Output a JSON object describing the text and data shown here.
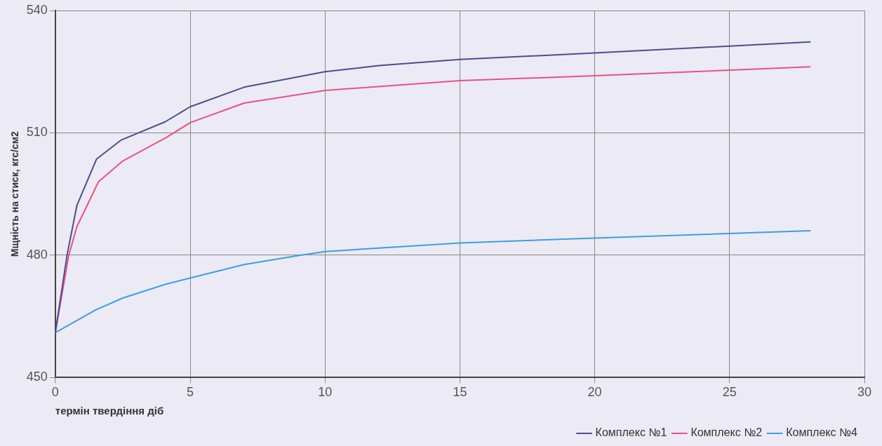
{
  "chart_data": {
    "type": "line",
    "xlabel": "термін твердіння діб",
    "ylabel": "Мщність на стиск, кгс/см2",
    "xlim": [
      0,
      30
    ],
    "xticks": [
      0,
      5,
      10,
      15,
      20,
      25,
      30
    ],
    "ylim": [
      450,
      540
    ],
    "yticks": [
      450,
      480,
      510,
      540
    ],
    "grid": true,
    "legend": "bottom",
    "marker": "none",
    "line_style": "solid",
    "series": [
      {
        "name": "Комплекс №1",
        "color": "#4b4f8c",
        "x": [
          0,
          0.44,
          0.8,
          1.53,
          2.43,
          4.07,
          5,
          7,
          10,
          12,
          15,
          20,
          28
        ],
        "values": [
          461,
          480.2,
          492.2,
          503.6,
          508.2,
          512.7,
          516.4,
          521.2,
          525,
          526.5,
          528,
          529.6,
          532.3
        ]
      },
      {
        "name": "Комплекс №2",
        "color": "#e8508a",
        "x": [
          0,
          0.5,
          0.8,
          1.6,
          2.5,
          4.1,
          5,
          7,
          10,
          15,
          20,
          28
        ],
        "values": [
          461,
          480,
          487,
          498,
          503.1,
          508.8,
          512.5,
          517.3,
          520.4,
          522.8,
          524,
          526.2
        ]
      },
      {
        "name": "Комплекс №4",
        "color": "#3aa0e0",
        "x": [
          0,
          1.5,
          2.5,
          4.1,
          5,
          7,
          9,
          10,
          15,
          20,
          28
        ],
        "values": [
          461,
          466.6,
          469.5,
          472.9,
          474.4,
          477.7,
          479.9,
          480.9,
          483,
          484.2,
          486
        ]
      }
    ]
  }
}
